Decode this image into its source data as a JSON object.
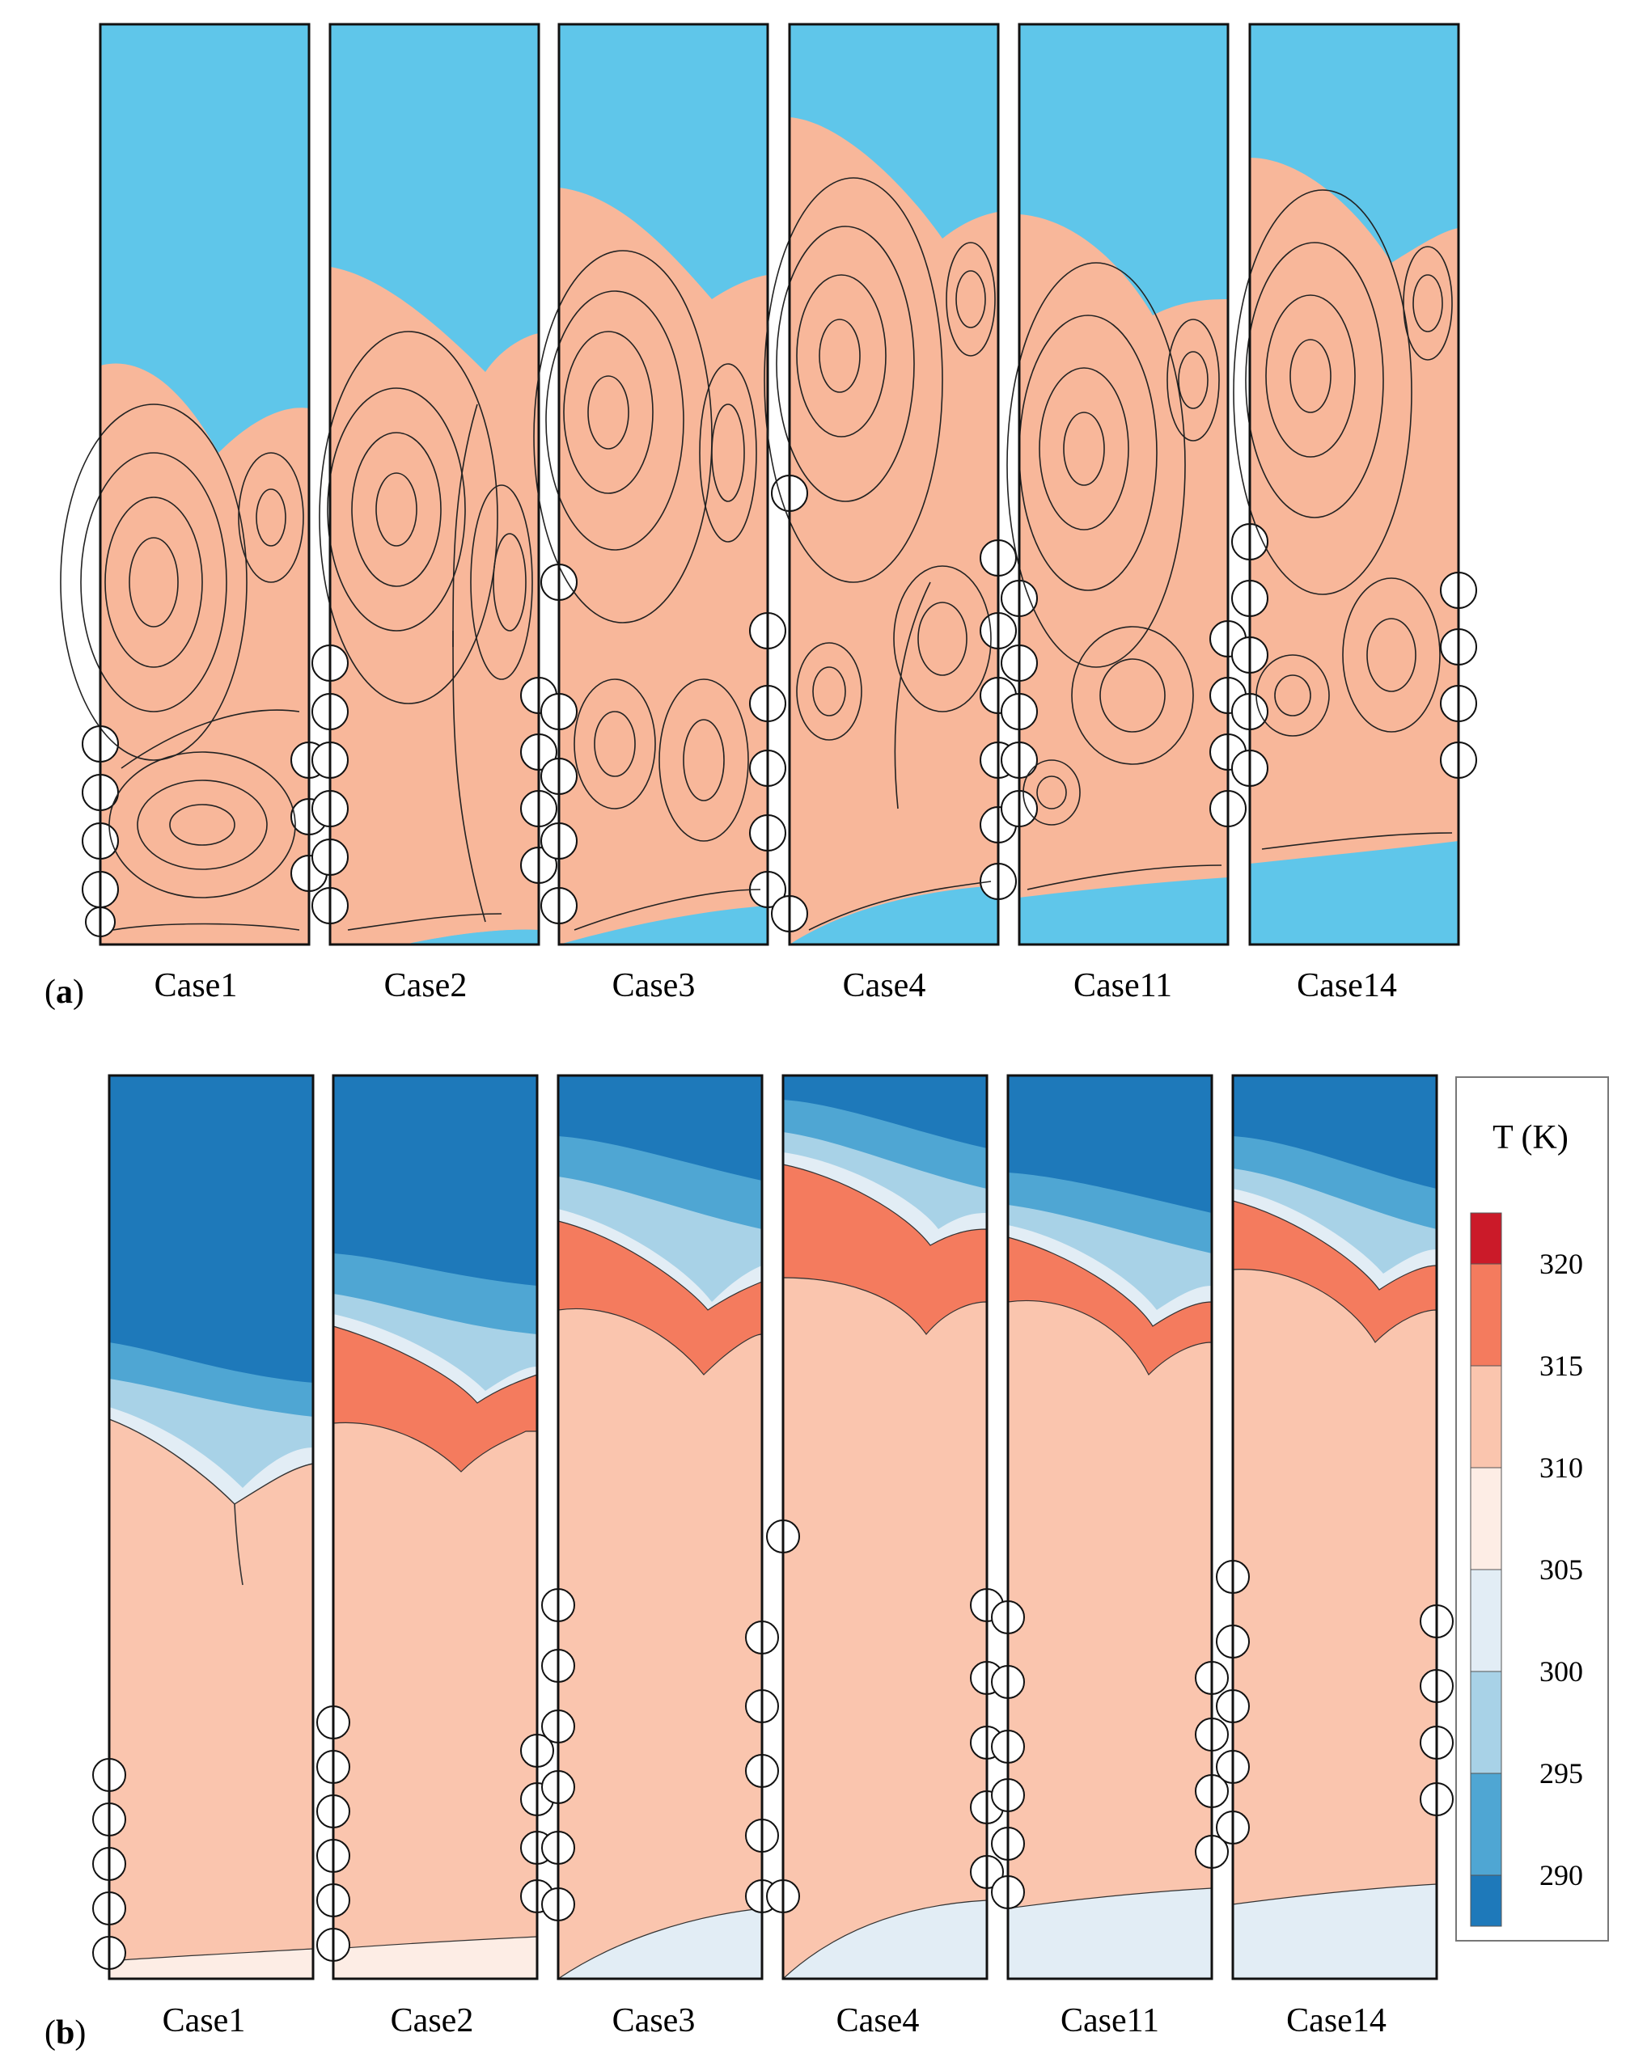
{
  "figure": {
    "panel_a": {
      "label_prefix": "(",
      "label_letter": "a",
      "label_suffix": ")",
      "fluid_colors": {
        "phase_liquid": "#F8B79A",
        "phase_gas": "#5FC6EA"
      },
      "cases": [
        "Case1",
        "Case2",
        "Case3",
        "Case4",
        "Case11",
        "Case14"
      ]
    },
    "panel_b": {
      "label_prefix": "(",
      "label_letter": "b",
      "label_suffix": ")",
      "cases": [
        "Case1",
        "Case2",
        "Case3",
        "Case4",
        "Case11",
        "Case14"
      ],
      "colorbar": {
        "title": "T (K)",
        "ticks": [
          "320",
          "315",
          "310",
          "305",
          "300",
          "295",
          "290"
        ],
        "levels_top_to_bottom": [
          {
            "from": 320,
            "to": 322.5,
            "color": "#CB1A29"
          },
          {
            "from": 315,
            "to": 320,
            "color": "#F47B5E"
          },
          {
            "from": 310,
            "to": 315,
            "color": "#FAC5AE"
          },
          {
            "from": 305,
            "to": 310,
            "color": "#FDEDE5"
          },
          {
            "from": 300,
            "to": 305,
            "color": "#E2EDF5"
          },
          {
            "from": 295,
            "to": 300,
            "color": "#A8D2E7"
          },
          {
            "from": 290,
            "to": 295,
            "color": "#4FA6D3"
          },
          {
            "from": 287.5,
            "to": 290,
            "color": "#1E79BA"
          }
        ]
      }
    }
  }
}
